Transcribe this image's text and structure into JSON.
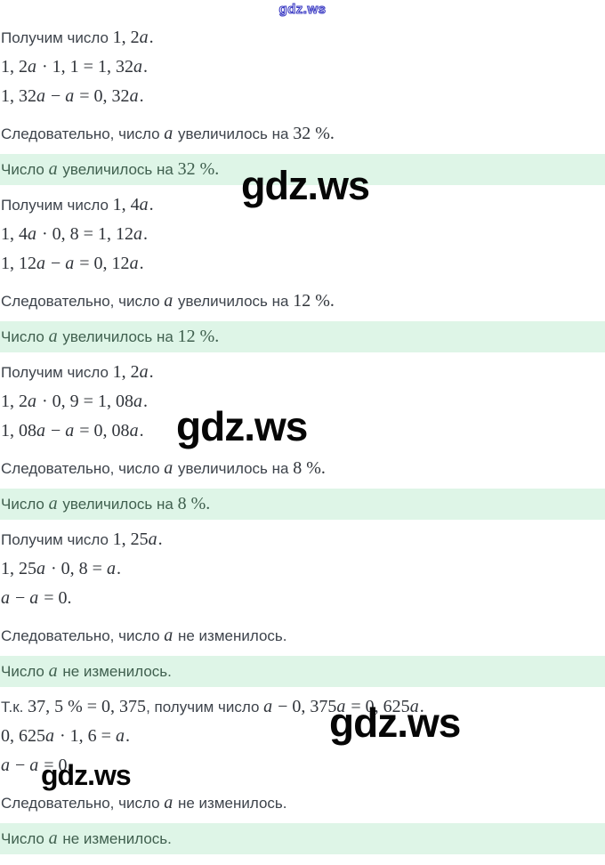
{
  "watermarks": {
    "top_text": "gdz.ws",
    "overlay_text": "gdz.ws"
  },
  "colors": {
    "answer_background": "#def5e7",
    "answer_text": "#40604f",
    "body_text": "#3d434b",
    "math_text": "#30343a",
    "watermark_black": "#060606",
    "watermark_blue_outline": "#3c3cc4"
  },
  "rows": [
    {
      "type": "step",
      "segments": [
        {
          "k": "t",
          "v": "Получим число "
        },
        {
          "k": "m",
          "v": "1, 2a."
        }
      ]
    },
    {
      "type": "step",
      "segments": [
        {
          "k": "m",
          "v": "1, 2a · 1, 1 = 1, 32a."
        }
      ]
    },
    {
      "type": "step",
      "segments": [
        {
          "k": "m",
          "v": "1, 32a − a = 0, 32a."
        }
      ]
    },
    {
      "type": "conclusion",
      "segments": [
        {
          "k": "t",
          "v": "Следовательно, число "
        },
        {
          "k": "m",
          "v": "a"
        },
        {
          "k": "t",
          "v": " увеличилось на "
        },
        {
          "k": "m",
          "v": "32 %."
        }
      ]
    },
    {
      "type": "answer",
      "segments": [
        {
          "k": "t",
          "v": "Число "
        },
        {
          "k": "m",
          "v": "a"
        },
        {
          "k": "t",
          "v": " увеличилось на "
        },
        {
          "k": "m",
          "v": "32 %."
        }
      ]
    },
    {
      "type": "step",
      "segments": [
        {
          "k": "t",
          "v": "Получим число "
        },
        {
          "k": "m",
          "v": "1, 4a."
        }
      ]
    },
    {
      "type": "step",
      "segments": [
        {
          "k": "m",
          "v": "1, 4a · 0, 8 = 1, 12a."
        }
      ]
    },
    {
      "type": "step",
      "segments": [
        {
          "k": "m",
          "v": "1, 12a − a = 0, 12a."
        }
      ]
    },
    {
      "type": "conclusion",
      "segments": [
        {
          "k": "t",
          "v": "Следовательно, число "
        },
        {
          "k": "m",
          "v": "a"
        },
        {
          "k": "t",
          "v": " увеличилось на "
        },
        {
          "k": "m",
          "v": "12 %."
        }
      ]
    },
    {
      "type": "answer",
      "segments": [
        {
          "k": "t",
          "v": "Число "
        },
        {
          "k": "m",
          "v": "a"
        },
        {
          "k": "t",
          "v": " увеличилось на "
        },
        {
          "k": "m",
          "v": "12 %."
        }
      ]
    },
    {
      "type": "step",
      "segments": [
        {
          "k": "t",
          "v": "Получим число "
        },
        {
          "k": "m",
          "v": "1, 2a."
        }
      ]
    },
    {
      "type": "step",
      "segments": [
        {
          "k": "m",
          "v": "1, 2a · 0, 9 = 1, 08a."
        }
      ]
    },
    {
      "type": "step",
      "segments": [
        {
          "k": "m",
          "v": "1, 08a − a = 0, 08a."
        }
      ]
    },
    {
      "type": "conclusion",
      "segments": [
        {
          "k": "t",
          "v": "Следовательно, число "
        },
        {
          "k": "m",
          "v": "a"
        },
        {
          "k": "t",
          "v": " увеличилось на "
        },
        {
          "k": "m",
          "v": "8 %."
        }
      ]
    },
    {
      "type": "answer",
      "segments": [
        {
          "k": "t",
          "v": "Число "
        },
        {
          "k": "m",
          "v": "a"
        },
        {
          "k": "t",
          "v": " увеличилось на "
        },
        {
          "k": "m",
          "v": "8 %."
        }
      ]
    },
    {
      "type": "step",
      "segments": [
        {
          "k": "t",
          "v": "Получим число "
        },
        {
          "k": "m",
          "v": "1, 25a."
        }
      ]
    },
    {
      "type": "step",
      "segments": [
        {
          "k": "m",
          "v": "1, 25a · 0, 8 = a."
        }
      ]
    },
    {
      "type": "step",
      "segments": [
        {
          "k": "m",
          "v": "a − a = 0."
        }
      ]
    },
    {
      "type": "conclusion",
      "segments": [
        {
          "k": "t",
          "v": "Следовательно, число "
        },
        {
          "k": "m",
          "v": "a"
        },
        {
          "k": "t",
          "v": " не изменилось."
        }
      ]
    },
    {
      "type": "answer",
      "segments": [
        {
          "k": "t",
          "v": "Число "
        },
        {
          "k": "m",
          "v": "a"
        },
        {
          "k": "t",
          "v": " не изменилось."
        }
      ]
    },
    {
      "type": "step",
      "segments": [
        {
          "k": "t",
          "v": "Т.к. "
        },
        {
          "k": "m",
          "v": "37, 5 % = 0, 375"
        },
        {
          "k": "t",
          "v": ", получим число "
        },
        {
          "k": "m",
          "v": "a − 0, 375a = 0, 625a."
        }
      ]
    },
    {
      "type": "step",
      "segments": [
        {
          "k": "m",
          "v": "0, 625a · 1, 6 = a."
        }
      ]
    },
    {
      "type": "step",
      "segments": [
        {
          "k": "m",
          "v": "a − a = 0."
        }
      ]
    },
    {
      "type": "conclusion",
      "segments": [
        {
          "k": "t",
          "v": "Следовательно, число "
        },
        {
          "k": "m",
          "v": "a"
        },
        {
          "k": "t",
          "v": " не изменилось."
        }
      ]
    },
    {
      "type": "answer",
      "segments": [
        {
          "k": "t",
          "v": "Число "
        },
        {
          "k": "m",
          "v": "a"
        },
        {
          "k": "t",
          "v": " не изменилось."
        }
      ]
    }
  ]
}
